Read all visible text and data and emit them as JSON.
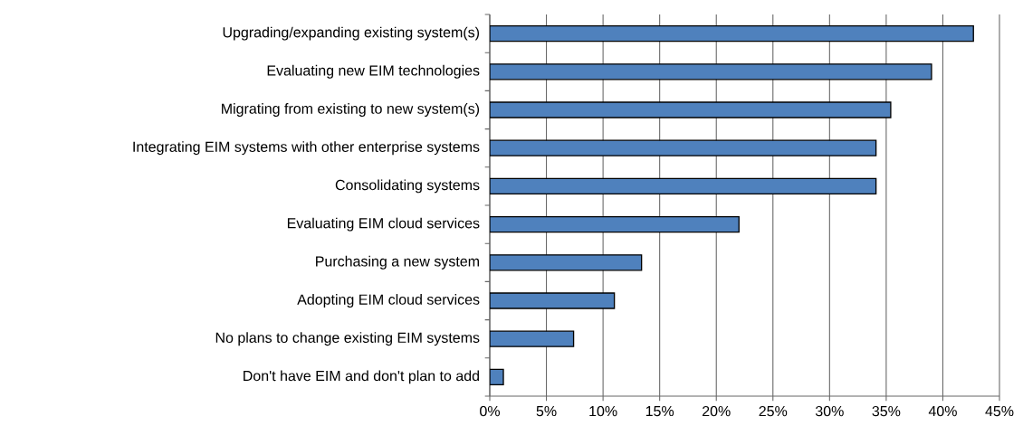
{
  "chart_data": {
    "type": "bar",
    "orientation": "horizontal",
    "categories": [
      "Upgrading/expanding existing system(s)",
      "Evaluating new EIM technologies",
      "Migrating from existing to new system(s)",
      "Integrating EIM systems with other enterprise systems",
      "Consolidating systems",
      "Evaluating EIM cloud services",
      "Purchasing a new system",
      "Adopting EIM cloud services",
      "No plans to change existing EIM systems",
      "Don't have EIM and don't plan to add"
    ],
    "values": [
      42.7,
      39.0,
      35.4,
      34.1,
      34.1,
      22.0,
      13.4,
      11.0,
      7.4,
      1.2
    ],
    "color": "#4f81bd",
    "xlim": [
      0,
      45
    ],
    "xticks": [
      {
        "value": 0,
        "label": "0%"
      },
      {
        "value": 5,
        "label": "5%"
      },
      {
        "value": 10,
        "label": "10%"
      },
      {
        "value": 15,
        "label": "15%"
      },
      {
        "value": 20,
        "label": "20%"
      },
      {
        "value": 25,
        "label": "25%"
      },
      {
        "value": 30,
        "label": "30%"
      },
      {
        "value": 35,
        "label": "35%"
      },
      {
        "value": 40,
        "label": "40%"
      },
      {
        "value": 45,
        "label": "45%"
      }
    ],
    "grid": "x"
  }
}
